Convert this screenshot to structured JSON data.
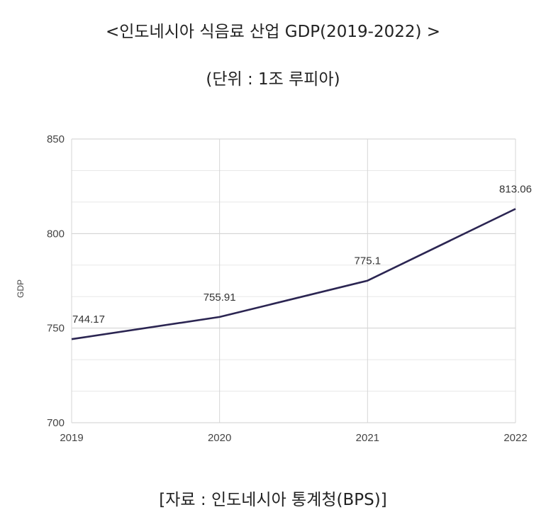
{
  "chart_data": {
    "type": "line",
    "title": "<인도네시아 식음료 산업 GDP(2019-2022) >",
    "subtitle": "(단위 : 1조 루피아)",
    "ylabel": "GDP",
    "xlabel": "",
    "x": [
      "2019",
      "2020",
      "2021",
      "2022"
    ],
    "series": [
      {
        "values": [
          744.17,
          755.91,
          775.1,
          813.06
        ],
        "labels": [
          "744.17",
          "755.91",
          "775.1",
          "813.06"
        ]
      }
    ],
    "ylim": [
      700,
      850
    ],
    "yticks": [
      "700",
      "750",
      "800",
      "850"
    ],
    "grid": true,
    "line_color": "#2b2552",
    "source": "[자료 : 인도네시아 통계청(BPS)]"
  }
}
